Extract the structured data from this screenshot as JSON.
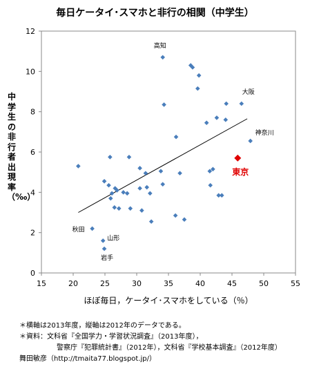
{
  "title": "毎日ケータイ･スマホと非行の相関（中学生）",
  "chart_data": {
    "type": "scatter",
    "title": "毎日ケータイ･スマホと非行の相関（中学生）",
    "xlabel": "ほぼ毎日，ケータイ･スマホをしている（％）",
    "ylabel": "中学生の非行者出現率（‰）",
    "xlim": [
      15,
      55
    ],
    "ylim": [
      0,
      12
    ],
    "xticks": [
      "15",
      "20",
      "25",
      "30",
      "35",
      "40",
      "45",
      "50",
      "55"
    ],
    "yticks": [
      "0",
      "2",
      "4",
      "6",
      "8",
      "10",
      "12"
    ],
    "grid": false,
    "marker_color": "#4a7ebb",
    "highlight_color": "#e00000",
    "trendline": {
      "x": [
        20.8,
        47.4
      ],
      "y": [
        3.0,
        7.65
      ]
    },
    "points": [
      {
        "x": 34.1,
        "y": 10.7,
        "label": "高知"
      },
      {
        "x": 38.5,
        "y": 10.3
      },
      {
        "x": 38.8,
        "y": 10.2
      },
      {
        "x": 39.8,
        "y": 9.8
      },
      {
        "x": 39.6,
        "y": 9.15
      },
      {
        "x": 46.5,
        "y": 8.4,
        "label": "大阪"
      },
      {
        "x": 44.1,
        "y": 8.4
      },
      {
        "x": 34.3,
        "y": 8.35
      },
      {
        "x": 42.6,
        "y": 7.7
      },
      {
        "x": 44.0,
        "y": 7.6
      },
      {
        "x": 41.0,
        "y": 7.45
      },
      {
        "x": 36.2,
        "y": 6.75
      },
      {
        "x": 47.9,
        "y": 6.55,
        "label": "神奈川"
      },
      {
        "x": 20.8,
        "y": 5.3
      },
      {
        "x": 25.8,
        "y": 5.75
      },
      {
        "x": 28.8,
        "y": 5.75
      },
      {
        "x": 30.5,
        "y": 5.2
      },
      {
        "x": 31.4,
        "y": 4.95
      },
      {
        "x": 33.8,
        "y": 5.05
      },
      {
        "x": 36.8,
        "y": 4.95
      },
      {
        "x": 42.0,
        "y": 5.15
      },
      {
        "x": 41.5,
        "y": 5.05
      },
      {
        "x": 24.9,
        "y": 4.55
      },
      {
        "x": 25.6,
        "y": 4.35
      },
      {
        "x": 26.6,
        "y": 4.2
      },
      {
        "x": 26.1,
        "y": 3.95
      },
      {
        "x": 26.9,
        "y": 4.1
      },
      {
        "x": 27.9,
        "y": 4.0
      },
      {
        "x": 28.5,
        "y": 3.95
      },
      {
        "x": 30.5,
        "y": 4.2
      },
      {
        "x": 31.6,
        "y": 4.25
      },
      {
        "x": 34.1,
        "y": 4.4
      },
      {
        "x": 41.6,
        "y": 4.35
      },
      {
        "x": 25.9,
        "y": 3.7
      },
      {
        "x": 32.1,
        "y": 3.95
      },
      {
        "x": 42.9,
        "y": 3.85
      },
      {
        "x": 43.4,
        "y": 3.85
      },
      {
        "x": 26.5,
        "y": 3.25
      },
      {
        "x": 27.2,
        "y": 3.2
      },
      {
        "x": 29.0,
        "y": 3.2
      },
      {
        "x": 30.8,
        "y": 3.1
      },
      {
        "x": 36.1,
        "y": 2.85
      },
      {
        "x": 37.5,
        "y": 2.65
      },
      {
        "x": 32.3,
        "y": 2.55
      },
      {
        "x": 23.0,
        "y": 2.2,
        "label": "秋田"
      },
      {
        "x": 24.7,
        "y": 1.6,
        "label": "山形"
      },
      {
        "x": 24.9,
        "y": 1.2,
        "label": "岩手"
      },
      {
        "x": 45.9,
        "y": 5.7,
        "label": "東京",
        "highlight": true
      }
    ]
  },
  "notes": {
    "line1": "＊横軸は2013年度，縦軸は2012年のデータである。",
    "line2": "＊資料：文科省『全国学力・学習状況調査』（2013年度），",
    "line3": "警察庁『犯罪統計書』（2012年），文科省『学校基本調査』（2012年度）",
    "author": "舞田敏彦（http://tmaita77.blogspot.jp/）"
  }
}
